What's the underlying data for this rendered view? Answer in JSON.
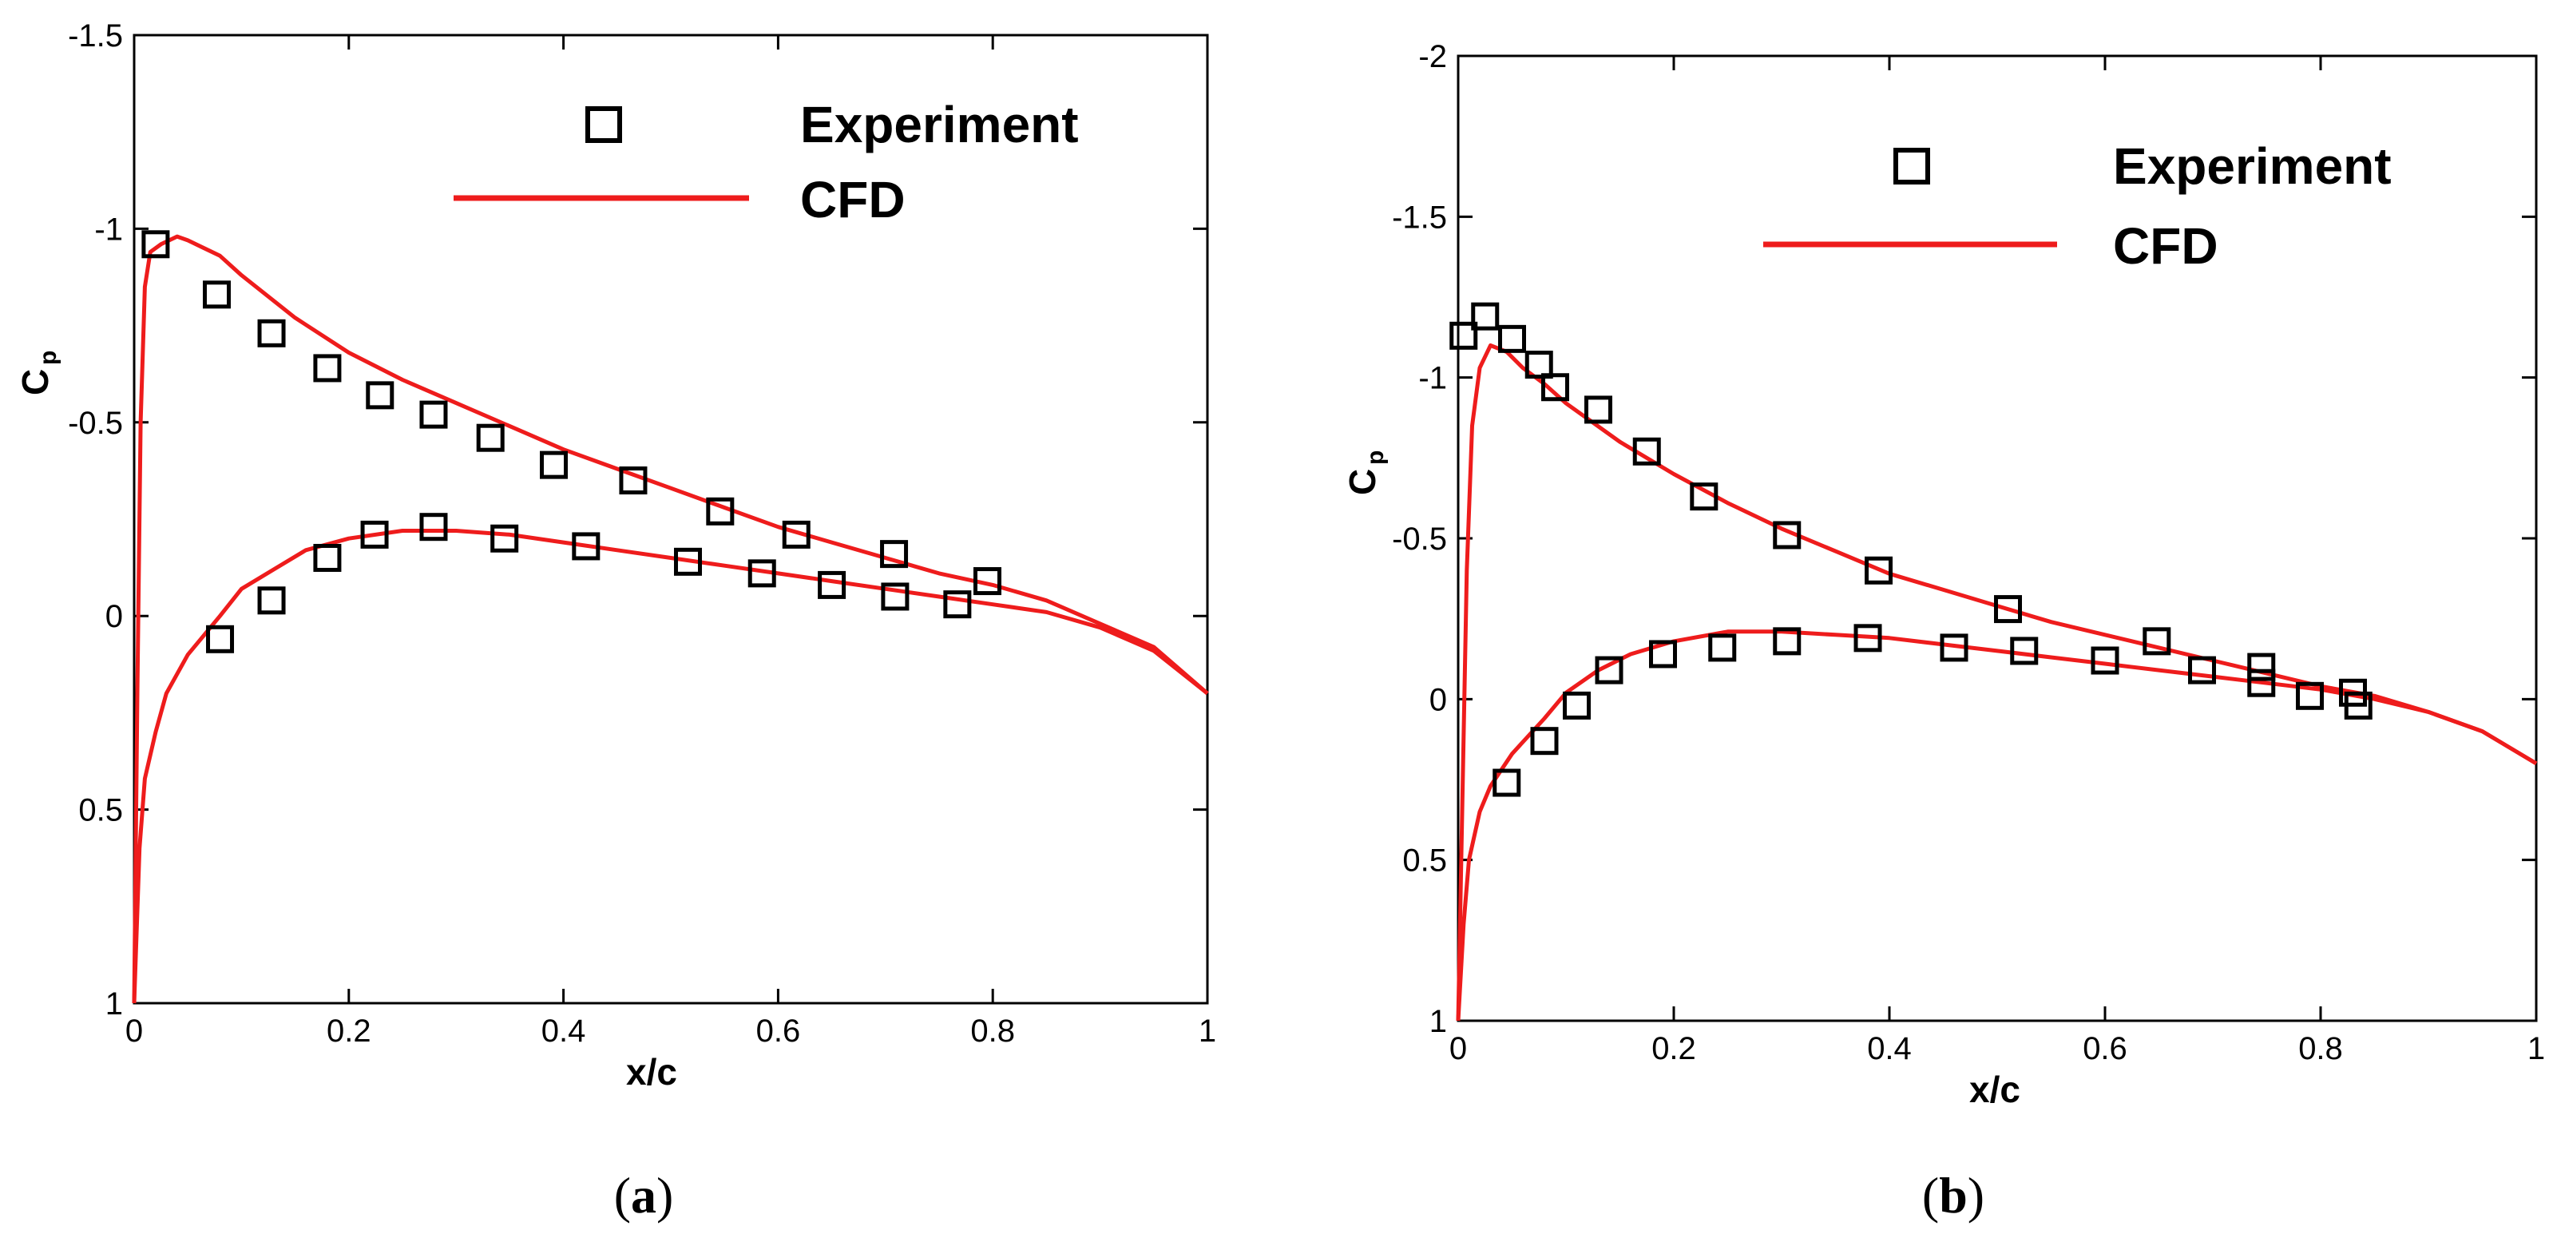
{
  "chart_data": [
    {
      "type": "line",
      "panel_label": "a",
      "xlabel": "x/c",
      "ylabel_main": "C",
      "ylabel_sub": "p",
      "xlim": [
        0,
        1
      ],
      "ylim": [
        1,
        -1.5
      ],
      "x_ticks": [
        0,
        0.2,
        0.4,
        0.6,
        0.8,
        1
      ],
      "x_tick_labels": [
        "0",
        "0.2",
        "0.4",
        "0.6",
        "0.8",
        "1"
      ],
      "y_ticks": [
        -1.5,
        -1,
        -0.5,
        0,
        0.5,
        1
      ],
      "y_tick_labels": [
        "-1.5",
        "-1",
        "-0.5",
        "0",
        "0.5",
        "1"
      ],
      "legend": {
        "experiment": "Experiment",
        "cfd": "CFD",
        "placement": "top-right"
      },
      "series": [
        {
          "name": "Experiment",
          "style": "square-markers",
          "points": [
            [
              0.02,
              -0.96
            ],
            [
              0.077,
              -0.83
            ],
            [
              0.128,
              -0.73
            ],
            [
              0.18,
              -0.64
            ],
            [
              0.229,
              -0.57
            ],
            [
              0.279,
              -0.52
            ],
            [
              0.332,
              -0.46
            ],
            [
              0.391,
              -0.39
            ],
            [
              0.465,
              -0.35
            ],
            [
              0.546,
              -0.27
            ],
            [
              0.617,
              -0.21
            ],
            [
              0.708,
              -0.16
            ],
            [
              0.795,
              -0.09
            ],
            [
              0.08,
              0.06
            ],
            [
              0.128,
              -0.04
            ],
            [
              0.18,
              -0.15
            ],
            [
              0.224,
              -0.21
            ],
            [
              0.279,
              -0.23
            ],
            [
              0.345,
              -0.2
            ],
            [
              0.421,
              -0.18
            ],
            [
              0.516,
              -0.14
            ],
            [
              0.585,
              -0.11
            ],
            [
              0.65,
              -0.08
            ],
            [
              0.709,
              -0.05
            ],
            [
              0.767,
              -0.03
            ]
          ]
        },
        {
          "name": "CFD upper",
          "style": "line",
          "points": [
            [
              0,
              1.0
            ],
            [
              0.003,
              0.2
            ],
            [
              0.006,
              -0.5
            ],
            [
              0.01,
              -0.85
            ],
            [
              0.015,
              -0.94
            ],
            [
              0.025,
              -0.96
            ],
            [
              0.04,
              -0.98
            ],
            [
              0.05,
              -0.97
            ],
            [
              0.08,
              -0.93
            ],
            [
              0.1,
              -0.88
            ],
            [
              0.15,
              -0.77
            ],
            [
              0.2,
              -0.68
            ],
            [
              0.25,
              -0.61
            ],
            [
              0.3,
              -0.55
            ],
            [
              0.35,
              -0.49
            ],
            [
              0.4,
              -0.43
            ],
            [
              0.45,
              -0.38
            ],
            [
              0.5,
              -0.33
            ],
            [
              0.55,
              -0.28
            ],
            [
              0.6,
              -0.23
            ],
            [
              0.65,
              -0.19
            ],
            [
              0.7,
              -0.15
            ],
            [
              0.75,
              -0.11
            ],
            [
              0.8,
              -0.08
            ],
            [
              0.85,
              -0.04
            ],
            [
              0.9,
              0.02
            ],
            [
              0.95,
              0.08
            ],
            [
              1.0,
              0.2
            ]
          ]
        },
        {
          "name": "CFD lower",
          "style": "line",
          "points": [
            [
              0,
              1.0
            ],
            [
              0.005,
              0.6
            ],
            [
              0.01,
              0.42
            ],
            [
              0.02,
              0.3
            ],
            [
              0.03,
              0.2
            ],
            [
              0.05,
              0.1
            ],
            [
              0.08,
              0.0
            ],
            [
              0.1,
              -0.07
            ],
            [
              0.13,
              -0.12
            ],
            [
              0.16,
              -0.17
            ],
            [
              0.2,
              -0.2
            ],
            [
              0.25,
              -0.22
            ],
            [
              0.3,
              -0.22
            ],
            [
              0.35,
              -0.21
            ],
            [
              0.4,
              -0.19
            ],
            [
              0.45,
              -0.17
            ],
            [
              0.5,
              -0.15
            ],
            [
              0.55,
              -0.13
            ],
            [
              0.6,
              -0.11
            ],
            [
              0.65,
              -0.09
            ],
            [
              0.7,
              -0.07
            ],
            [
              0.75,
              -0.05
            ],
            [
              0.8,
              -0.03
            ],
            [
              0.85,
              -0.01
            ],
            [
              0.9,
              0.03
            ],
            [
              0.95,
              0.09
            ],
            [
              1.0,
              0.2
            ]
          ]
        }
      ]
    },
    {
      "type": "line",
      "panel_label": "b",
      "xlabel": "x/c",
      "ylabel_main": "C",
      "ylabel_sub": "p",
      "xlim": [
        0,
        1
      ],
      "ylim": [
        1,
        -2
      ],
      "x_ticks": [
        0,
        0.2,
        0.4,
        0.6,
        0.8,
        1
      ],
      "x_tick_labels": [
        "0",
        "0.2",
        "0.4",
        "0.6",
        "0.8",
        "1"
      ],
      "y_ticks": [
        -2,
        -1.5,
        -1,
        -0.5,
        0,
        0.5,
        1
      ],
      "y_tick_labels": [
        "-2",
        "-1.5",
        "-1",
        "-0.5",
        "0",
        "0.5",
        "1"
      ],
      "legend": {
        "experiment": "Experiment",
        "cfd": "CFD",
        "placement": "top-right"
      },
      "series": [
        {
          "name": "Experiment",
          "style": "square-markers",
          "points": [
            [
              0.005,
              -1.13
            ],
            [
              0.025,
              -1.19
            ],
            [
              0.05,
              -1.12
            ],
            [
              0.075,
              -1.04
            ],
            [
              0.09,
              -0.97
            ],
            [
              0.13,
              -0.9
            ],
            [
              0.175,
              -0.77
            ],
            [
              0.228,
              -0.63
            ],
            [
              0.305,
              -0.51
            ],
            [
              0.39,
              -0.4
            ],
            [
              0.51,
              -0.28
            ],
            [
              0.648,
              -0.18
            ],
            [
              0.745,
              -0.1
            ],
            [
              0.83,
              -0.02
            ],
            [
              0.045,
              0.26
            ],
            [
              0.08,
              0.13
            ],
            [
              0.11,
              0.02
            ],
            [
              0.14,
              -0.09
            ],
            [
              0.19,
              -0.14
            ],
            [
              0.245,
              -0.16
            ],
            [
              0.305,
              -0.18
            ],
            [
              0.38,
              -0.19
            ],
            [
              0.46,
              -0.16
            ],
            [
              0.525,
              -0.15
            ],
            [
              0.6,
              -0.12
            ],
            [
              0.69,
              -0.09
            ],
            [
              0.745,
              -0.05
            ],
            [
              0.79,
              -0.01
            ],
            [
              0.835,
              0.02
            ]
          ]
        },
        {
          "name": "CFD upper",
          "style": "line",
          "points": [
            [
              0,
              1.0
            ],
            [
              0.004,
              0.3
            ],
            [
              0.008,
              -0.4
            ],
            [
              0.013,
              -0.85
            ],
            [
              0.02,
              -1.03
            ],
            [
              0.03,
              -1.1
            ],
            [
              0.045,
              -1.08
            ],
            [
              0.06,
              -1.03
            ],
            [
              0.08,
              -0.98
            ],
            [
              0.1,
              -0.92
            ],
            [
              0.15,
              -0.8
            ],
            [
              0.2,
              -0.7
            ],
            [
              0.25,
              -0.61
            ],
            [
              0.3,
              -0.53
            ],
            [
              0.35,
              -0.46
            ],
            [
              0.4,
              -0.39
            ],
            [
              0.45,
              -0.34
            ],
            [
              0.5,
              -0.29
            ],
            [
              0.55,
              -0.24
            ],
            [
              0.6,
              -0.2
            ],
            [
              0.65,
              -0.16
            ],
            [
              0.7,
              -0.12
            ],
            [
              0.75,
              -0.08
            ],
            [
              0.8,
              -0.04
            ],
            [
              0.85,
              -0.01
            ],
            [
              0.9,
              0.04
            ],
            [
              0.95,
              0.1
            ],
            [
              1.0,
              0.2
            ]
          ]
        },
        {
          "name": "CFD lower",
          "style": "line",
          "points": [
            [
              0,
              1.0
            ],
            [
              0.005,
              0.7
            ],
            [
              0.01,
              0.5
            ],
            [
              0.02,
              0.35
            ],
            [
              0.03,
              0.27
            ],
            [
              0.05,
              0.17
            ],
            [
              0.08,
              0.06
            ],
            [
              0.1,
              -0.02
            ],
            [
              0.13,
              -0.09
            ],
            [
              0.16,
              -0.14
            ],
            [
              0.2,
              -0.18
            ],
            [
              0.25,
              -0.21
            ],
            [
              0.3,
              -0.21
            ],
            [
              0.35,
              -0.2
            ],
            [
              0.4,
              -0.19
            ],
            [
              0.45,
              -0.17
            ],
            [
              0.5,
              -0.15
            ],
            [
              0.55,
              -0.13
            ],
            [
              0.6,
              -0.11
            ],
            [
              0.65,
              -0.09
            ],
            [
              0.7,
              -0.07
            ],
            [
              0.75,
              -0.05
            ],
            [
              0.8,
              -0.03
            ],
            [
              0.85,
              0.0
            ],
            [
              0.9,
              0.04
            ],
            [
              0.95,
              0.1
            ],
            [
              1.0,
              0.2
            ]
          ]
        }
      ]
    }
  ],
  "colors": {
    "cfd_line": "#ee1c1c",
    "marker": "#000000",
    "axis": "#000000"
  }
}
